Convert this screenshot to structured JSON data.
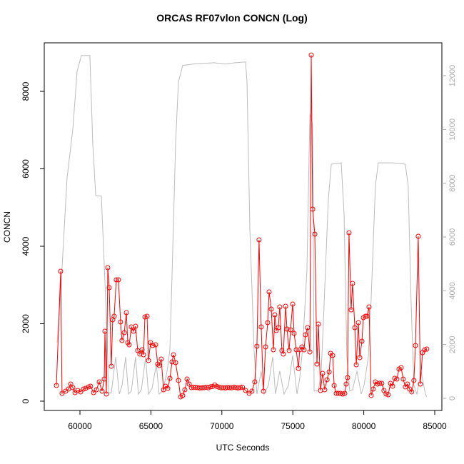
{
  "chart_data": {
    "type": "line",
    "title": "ORCAS RF07vlon CONCN (Log)",
    "xlabel": "UTC Seconds",
    "ylabel": "CONCN",
    "xlim": [
      57485,
      85503
    ],
    "ylim": [
      -240,
      9253
    ],
    "y2lim": [
      -452,
      13222
    ],
    "xticks": [
      60000,
      65000,
      70000,
      75000,
      80000,
      85000
    ],
    "yticks": [
      0,
      2000,
      4000,
      6000,
      8000
    ],
    "y2ticks": [
      0,
      2000,
      4000,
      6000,
      8000,
      10000,
      12000
    ],
    "series": [
      {
        "color": "#bbbbbb",
        "axis": "y2",
        "markers": false,
        "x": [
          58390,
          58690,
          59090,
          59500,
          59800,
          60100,
          60700,
          60900,
          61110,
          61510,
          61710,
          61910,
          62010,
          62210,
          62520,
          62770,
          62970,
          63220,
          63420,
          63620,
          63920,
          64120,
          64330,
          64630,
          64830,
          65080,
          65380,
          65580,
          65840,
          66140,
          66340,
          66540,
          66740,
          66940,
          67240,
          67950,
          69460,
          70210,
          70960,
          71670,
          71770,
          71970,
          72270,
          72470,
          72770,
          72970,
          73280,
          73580,
          73780,
          74080,
          74380,
          74690,
          74990,
          75290,
          75490,
          75690,
          75990,
          76200,
          76400,
          76500,
          76800,
          77000,
          77200,
          77500,
          77710,
          78410,
          78610,
          78810,
          79010,
          79210,
          79520,
          79820,
          80020,
          80320,
          80520,
          80820,
          81020,
          82030,
          82930,
          83130,
          83330,
          83530,
          83740,
          84040,
          84340,
          84440
        ],
        "values": [
          2072,
          4409,
          8180,
          10040,
          12160,
          12750,
          12750,
          9510,
          7540,
          7520,
          4990,
          2340,
          210,
          190,
          1540,
          160,
          480,
          1540,
          160,
          270,
          1540,
          160,
          320,
          1540,
          160,
          370,
          1270,
          160,
          270,
          1010,
          1810,
          5520,
          9510,
          11770,
          12380,
          12430,
          12480,
          12430,
          12480,
          12510,
          11770,
          6320,
          1810,
          160,
          1010,
          160,
          480,
          1540,
          160,
          1010,
          160,
          480,
          1590,
          160,
          740,
          1860,
          4730,
          10570,
          10170,
          270,
          270,
          1010,
          3400,
          7380,
          8710,
          8760,
          6850,
          1540,
          270,
          320,
          1010,
          160,
          480,
          1540,
          3660,
          7910,
          8760,
          8760,
          8710,
          7910,
          3660,
          480,
          160,
          1010,
          160,
          50
        ]
      },
      {
        "color": "#ff0000",
        "axis": "y",
        "markers": true,
        "x": [
          58340,
          58640,
          58740,
          58990,
          59190,
          59350,
          59500,
          59650,
          59850,
          60050,
          60250,
          60400,
          60600,
          60750,
          60960,
          61160,
          61360,
          61560,
          61710,
          61760,
          61860,
          61960,
          62060,
          62210,
          62310,
          62410,
          62560,
          62710,
          62860,
          62960,
          63120,
          63270,
          63370,
          63470,
          63620,
          63770,
          63920,
          64070,
          64220,
          64380,
          64480,
          64580,
          64730,
          64830,
          64980,
          65130,
          65330,
          65480,
          65580,
          65730,
          65890,
          66040,
          66190,
          66340,
          66490,
          66590,
          66740,
          66940,
          67090,
          67240,
          67390,
          67550,
          67700,
          67850,
          68000,
          68150,
          68300,
          68450,
          68600,
          68750,
          68900,
          69050,
          69200,
          69350,
          69500,
          69650,
          69800,
          69950,
          70100,
          70250,
          70400,
          70550,
          70700,
          70850,
          71000,
          71150,
          71300,
          71450,
          71670,
          71920,
          72120,
          72320,
          72470,
          72620,
          72770,
          72930,
          73080,
          73230,
          73330,
          73480,
          73630,
          73730,
          73830,
          73980,
          74080,
          74230,
          74330,
          74490,
          74590,
          74740,
          74840,
          74990,
          75090,
          75240,
          75390,
          75490,
          75640,
          75790,
          75890,
          76040,
          76200,
          76300,
          76400,
          76550,
          76700,
          76800,
          76950,
          77100,
          77250,
          77410,
          77560,
          77660,
          77810,
          77910,
          78060,
          78210,
          78360,
          78510,
          78660,
          78760,
          78860,
          78960,
          79110,
          79210,
          79370,
          79470,
          79620,
          79720,
          79870,
          79970,
          80120,
          80220,
          80370,
          80520,
          80670,
          80820,
          80970,
          81120,
          81270,
          81420,
          81570,
          81720,
          81880,
          82030,
          82180,
          82330,
          82480,
          82630,
          82780,
          82930,
          83080,
          83230,
          83380,
          83530,
          83640,
          83840,
          83990,
          84140,
          84290,
          84440
        ],
        "values": [
          405,
          3354,
          203,
          258,
          313,
          442,
          350,
          221,
          276,
          240,
          313,
          332,
          369,
          387,
          221,
          295,
          498,
          258,
          571,
          1806,
          184,
          3446,
          2930,
          903,
          2101,
          2193,
          3133,
          3133,
          2046,
          1567,
          1769,
          2285,
          1511,
          1456,
          1917,
          1806,
          1935,
          1309,
          1216,
          1327,
          1198,
          2175,
          2193,
          1051,
          1511,
          1438,
          1456,
          958,
          922,
          1087,
          295,
          387,
          332,
          590,
          1014,
          1198,
          995,
          535,
          111,
          147,
          295,
          571,
          442,
          350,
          360,
          355,
          350,
          340,
          345,
          350,
          360,
          345,
          370,
          380,
          420,
          380,
          360,
          345,
          350,
          340,
          355,
          350,
          345,
          360,
          350,
          340,
          350,
          360,
          276,
          203,
          258,
          498,
          1419,
          4165,
          1917,
          258,
          1401,
          2027,
          2820,
          2377,
          1327,
          2230,
          1825,
          1898,
          2433,
          1309,
          1216,
          2451,
          1861,
          1309,
          1843,
          2507,
          1751,
          1327,
          848,
          1327,
          1401,
          1327,
          1714,
          1898,
          1272,
          8938,
          4958,
          4313,
          958,
          1990,
          276,
          719,
          295,
          553,
          756,
          1235,
          1179,
          405,
          203,
          203,
          203,
          184,
          203,
          442,
          608,
          4350,
          2359,
          3041,
          1898,
          940,
          2027,
          1124,
          1548,
          2156,
          2193,
          2193,
          2433,
          147,
          313,
          498,
          442,
          461,
          461,
          276,
          184,
          166,
          461,
          387,
          590,
          571,
          829,
          866,
          571,
          369,
          442,
          313,
          240,
          535,
          1438,
          4257,
          442,
          1253,
          1327,
          1345
        ]
      }
    ]
  }
}
